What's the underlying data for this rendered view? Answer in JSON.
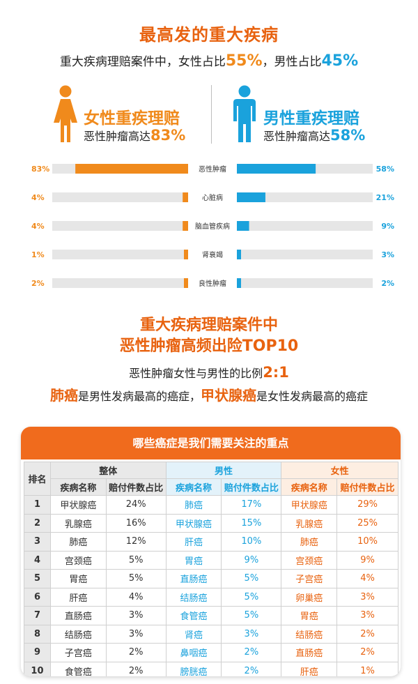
{
  "header": {
    "title": "最高发的重大疾病",
    "subtitle_pre": "重大疾病理赔案件中，女性占比",
    "female_pct": "55%",
    "subtitle_mid": "，男性占比",
    "male_pct": "45%"
  },
  "female_group": {
    "title": "女性重疾理赔",
    "sub_pre": "恶性肿瘤高达",
    "sub_pct": "83%",
    "color": "#f08a1c"
  },
  "male_group": {
    "title": "男性重疾理赔",
    "sub_pre": "恶性肿瘤高达",
    "sub_pct": "58%",
    "color": "#1aa2dc"
  },
  "chart_data": {
    "type": "bar",
    "categories": [
      "恶性肿瘤",
      "心脏病",
      "脑血管疾病",
      "肾衰竭",
      "良性肿瘤"
    ],
    "series": [
      {
        "name": "女性重疾理赔",
        "values": [
          83,
          4,
          4,
          1,
          2
        ],
        "labels": [
          "83%",
          "4%",
          "4%",
          "1%",
          "2%"
        ],
        "color": "#f08a1c"
      },
      {
        "name": "男性重疾理赔",
        "values": [
          58,
          21,
          9,
          3,
          2
        ],
        "labels": [
          "58%",
          "21%",
          "9%",
          "3%",
          "2%"
        ],
        "color": "#1aa2dc"
      }
    ],
    "xlim": [
      0,
      100
    ],
    "track_color": "#e6e6e6"
  },
  "section2": {
    "title_line1": "重大疾病理赔案件中",
    "title_line2": "恶性肿瘤高频出险TOP10",
    "ratio_pre": "恶性肿瘤女性与男性的比例",
    "ratio_value": "2:1",
    "hl_male_cancer": "肺癌",
    "hl_male_text": "是男性发病最高的癌症，",
    "hl_female_cancer": "甲状腺癌",
    "hl_female_text": "是女性发病最高的癌症"
  },
  "table": {
    "banner": "哪些癌症是我们需要关注的重点",
    "rank_header": "排名",
    "group_all": "整体",
    "group_male": "男性",
    "group_female": "女性",
    "col_name": "疾病名称",
    "col_ratio": "赔付件数占比",
    "rows": [
      {
        "rank": "1",
        "all_name": "甲状腺癌",
        "all_pct": "24%",
        "male_name": "肺癌",
        "male_pct": "17%",
        "female_name": "甲状腺癌",
        "female_pct": "29%"
      },
      {
        "rank": "2",
        "all_name": "乳腺癌",
        "all_pct": "16%",
        "male_name": "甲状腺癌",
        "male_pct": "15%",
        "female_name": "乳腺癌",
        "female_pct": "25%"
      },
      {
        "rank": "3",
        "all_name": "肺癌",
        "all_pct": "12%",
        "male_name": "肝癌",
        "male_pct": "10%",
        "female_name": "肺癌",
        "female_pct": "10%"
      },
      {
        "rank": "4",
        "all_name": "宫颈癌",
        "all_pct": "5%",
        "male_name": "胃癌",
        "male_pct": "9%",
        "female_name": "宫颈癌",
        "female_pct": "9%"
      },
      {
        "rank": "5",
        "all_name": "胃癌",
        "all_pct": "5%",
        "male_name": "直肠癌",
        "male_pct": "5%",
        "female_name": "子宫癌",
        "female_pct": "4%"
      },
      {
        "rank": "6",
        "all_name": "肝癌",
        "all_pct": "4%",
        "male_name": "结肠癌",
        "male_pct": "5%",
        "female_name": "卵巢癌",
        "female_pct": "3%"
      },
      {
        "rank": "7",
        "all_name": "直肠癌",
        "all_pct": "3%",
        "male_name": "食管癌",
        "male_pct": "5%",
        "female_name": "胃癌",
        "female_pct": "3%"
      },
      {
        "rank": "8",
        "all_name": "结肠癌",
        "all_pct": "3%",
        "male_name": "肾癌",
        "male_pct": "3%",
        "female_name": "结肠癌",
        "female_pct": "2%"
      },
      {
        "rank": "9",
        "all_name": "子宫癌",
        "all_pct": "2%",
        "male_name": "鼻咽癌",
        "male_pct": "2%",
        "female_name": "直肠癌",
        "female_pct": "2%"
      },
      {
        "rank": "10",
        "all_name": "食管癌",
        "all_pct": "2%",
        "male_name": "膀胱癌",
        "male_pct": "2%",
        "female_name": "肝癌",
        "female_pct": "1%"
      }
    ]
  }
}
